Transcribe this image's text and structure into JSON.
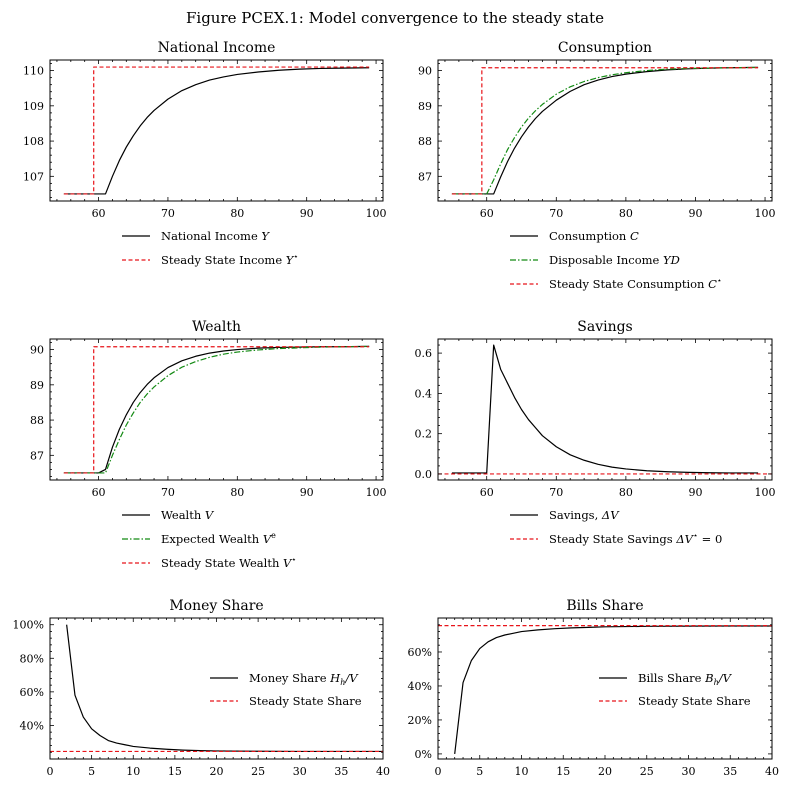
{
  "figure": {
    "title": "Figure PCEX.1: Model convergence to the steady state"
  },
  "colors": {
    "black": "#000000",
    "red": "#e8141a",
    "green": "#138a13"
  },
  "chart_data": [
    {
      "id": "income",
      "type": "line",
      "title": "National Income",
      "xlim": [
        53,
        101
      ],
      "ylim": [
        106.3,
        110.3
      ],
      "xticks": [
        60,
        70,
        80,
        90,
        100
      ],
      "xtick_labels": [
        "60",
        "70",
        "80",
        "90",
        "100"
      ],
      "yticks": [
        107,
        108,
        109,
        110
      ],
      "ytick_labels": [
        "107",
        "108",
        "109",
        "110"
      ],
      "legend": "below",
      "series": [
        {
          "name": "National Income Y",
          "label_main": "National Income",
          "label_sym": "Y",
          "label_sup": "",
          "color": "#000000",
          "style": "solid",
          "x": [
            55,
            57,
            59,
            61,
            62,
            63,
            64,
            65,
            66,
            67,
            68,
            70,
            72,
            74,
            76,
            78,
            80,
            83,
            86,
            89,
            92,
            95,
            99
          ],
          "y": [
            106.5,
            106.5,
            106.5,
            106.5,
            107.0,
            107.45,
            107.83,
            108.15,
            108.43,
            108.67,
            108.87,
            109.19,
            109.43,
            109.6,
            109.73,
            109.82,
            109.89,
            109.96,
            110.01,
            110.04,
            110.06,
            110.07,
            110.08
          ]
        },
        {
          "name": "Steady State Income Y*",
          "label_main": "Steady State Income",
          "label_sym": "Y",
          "label_sup": "⋆",
          "color": "#e8141a",
          "style": "dashed",
          "x": [
            55,
            59.3,
            59.3,
            99
          ],
          "y": [
            106.5,
            106.5,
            110.1,
            110.1
          ]
        }
      ]
    },
    {
      "id": "consumption",
      "type": "line",
      "title": "Consumption",
      "xlim": [
        53,
        101
      ],
      "ylim": [
        86.3,
        90.3
      ],
      "xticks": [
        60,
        70,
        80,
        90,
        100
      ],
      "xtick_labels": [
        "60",
        "70",
        "80",
        "90",
        "100"
      ],
      "yticks": [
        87,
        88,
        89,
        90
      ],
      "ytick_labels": [
        "87",
        "88",
        "89",
        "90"
      ],
      "legend": "below",
      "series": [
        {
          "name": "Consumption C",
          "label_main": "Consumption",
          "label_sym": "C",
          "label_sup": "",
          "color": "#000000",
          "style": "solid",
          "x": [
            55,
            57,
            59,
            61,
            62,
            63,
            64,
            65,
            66,
            67,
            68,
            70,
            72,
            74,
            76,
            78,
            80,
            83,
            86,
            89,
            92,
            95,
            99
          ],
          "y": [
            86.5,
            86.5,
            86.5,
            86.5,
            86.98,
            87.42,
            87.8,
            88.12,
            88.4,
            88.64,
            88.84,
            89.16,
            89.41,
            89.6,
            89.73,
            89.83,
            89.9,
            89.97,
            90.02,
            90.05,
            90.07,
            90.08,
            90.09
          ]
        },
        {
          "name": "Disposable Income YD",
          "label_main": "Disposable Income",
          "label_sym": "YD",
          "label_sup": "",
          "color": "#138a13",
          "style": "dashdot",
          "x": [
            55,
            57,
            59,
            60,
            61,
            62,
            63,
            64,
            65,
            66,
            67,
            68,
            70,
            72,
            74,
            76,
            78,
            80,
            83,
            86,
            89,
            92,
            95,
            99
          ],
          "y": [
            86.5,
            86.5,
            86.5,
            86.5,
            86.9,
            87.35,
            87.76,
            88.1,
            88.4,
            88.65,
            88.86,
            89.04,
            89.33,
            89.54,
            89.69,
            89.8,
            89.88,
            89.94,
            90.0,
            90.04,
            90.06,
            90.07,
            90.08,
            90.09
          ]
        },
        {
          "name": "Steady State Consumption C*",
          "label_main": "Steady State Consumption",
          "label_sym": "C",
          "label_sup": "⋆",
          "color": "#e8141a",
          "style": "dashed",
          "x": [
            55,
            59.3,
            59.3,
            99
          ],
          "y": [
            86.5,
            86.5,
            90.08,
            90.08
          ]
        }
      ]
    },
    {
      "id": "wealth",
      "type": "line",
      "title": "Wealth",
      "xlim": [
        53,
        101
      ],
      "ylim": [
        86.3,
        90.3
      ],
      "xticks": [
        60,
        70,
        80,
        90,
        100
      ],
      "xtick_labels": [
        "60",
        "70",
        "80",
        "90",
        "100"
      ],
      "yticks": [
        87,
        88,
        89,
        90
      ],
      "ytick_labels": [
        "87",
        "88",
        "89",
        "90"
      ],
      "legend": "below",
      "series": [
        {
          "name": "Wealth V",
          "label_main": "Wealth",
          "label_sym": "V",
          "label_sup": "",
          "color": "#000000",
          "style": "solid",
          "x": [
            55,
            57,
            59,
            60,
            61,
            62,
            63,
            64,
            65,
            66,
            67,
            68,
            70,
            72,
            74,
            76,
            78,
            80,
            83,
            86,
            89,
            92,
            95,
            99
          ],
          "y": [
            86.5,
            86.5,
            86.5,
            86.5,
            86.6,
            87.23,
            87.74,
            88.15,
            88.5,
            88.78,
            89.01,
            89.2,
            89.49,
            89.68,
            89.81,
            89.9,
            89.96,
            90.0,
            90.04,
            90.06,
            90.07,
            90.08,
            90.08,
            90.09
          ]
        },
        {
          "name": "Expected Wealth Ve",
          "label_main": "Expected Wealth",
          "label_sym": "V",
          "label_sup": "e",
          "color": "#138a13",
          "style": "dashdot",
          "x": [
            55,
            57,
            59,
            60,
            61,
            62,
            63,
            64,
            65,
            66,
            67,
            68,
            70,
            72,
            74,
            76,
            78,
            80,
            83,
            86,
            89,
            92,
            95,
            99
          ],
          "y": [
            86.5,
            86.5,
            86.5,
            86.5,
            86.5,
            87.0,
            87.45,
            87.86,
            88.2,
            88.5,
            88.74,
            88.94,
            89.26,
            89.5,
            89.66,
            89.78,
            89.87,
            89.93,
            89.99,
            90.03,
            90.05,
            90.07,
            90.08,
            90.09
          ]
        },
        {
          "name": "Steady State Wealth V*",
          "label_main": "Steady State Wealth",
          "label_sym": "V",
          "label_sup": "⋆",
          "color": "#e8141a",
          "style": "dashed",
          "x": [
            55,
            59.3,
            59.3,
            99
          ],
          "y": [
            86.5,
            86.5,
            90.08,
            90.08
          ]
        }
      ]
    },
    {
      "id": "savings",
      "type": "line",
      "title": "Savings",
      "xlim": [
        53,
        101
      ],
      "ylim": [
        -0.03,
        0.67
      ],
      "xticks": [
        60,
        70,
        80,
        90,
        100
      ],
      "xtick_labels": [
        "60",
        "70",
        "80",
        "90",
        "100"
      ],
      "yticks": [
        0.0,
        0.2,
        0.4,
        0.6
      ],
      "ytick_labels": [
        "0.0",
        "0.2",
        "0.4",
        "0.6"
      ],
      "legend": "below",
      "series": [
        {
          "name": "Savings, ΔV",
          "label_main": "Savings,",
          "label_sym": "ΔV",
          "label_sup": "",
          "color": "#000000",
          "style": "solid",
          "x": [
            55,
            57,
            59,
            60,
            61,
            62,
            63,
            64,
            65,
            66,
            67,
            68,
            70,
            72,
            74,
            76,
            78,
            80,
            83,
            86,
            89,
            92,
            95,
            99
          ],
          "y": [
            0.005,
            0.005,
            0.005,
            0.005,
            0.64,
            0.52,
            0.45,
            0.38,
            0.32,
            0.27,
            0.23,
            0.19,
            0.135,
            0.095,
            0.068,
            0.048,
            0.034,
            0.025,
            0.016,
            0.011,
            0.008,
            0.006,
            0.005,
            0.005
          ]
        },
        {
          "name": "Steady State Savings ΔV* = 0",
          "label_main": "Steady State Savings",
          "label_sym": "ΔV",
          "label_sup": "⋆",
          "label_tail": "= 0",
          "color": "#e8141a",
          "style": "dashed",
          "x": [
            53,
            101
          ],
          "y": [
            0,
            0
          ]
        }
      ]
    },
    {
      "id": "money_share",
      "type": "line",
      "title": "Money Share",
      "xlim": [
        0,
        40
      ],
      "ylim": [
        0.2,
        1.04
      ],
      "xticks": [
        0,
        5,
        10,
        15,
        20,
        25,
        30,
        35,
        40
      ],
      "xtick_labels": [
        "0",
        "5",
        "10",
        "15",
        "20",
        "25",
        "30",
        "35",
        "40"
      ],
      "yticks": [
        0.4,
        0.6,
        0.8,
        1.0
      ],
      "ytick_labels": [
        "40%",
        "60%",
        "80%",
        "100%"
      ],
      "legend": "right",
      "series": [
        {
          "name": "Money Share Hh/V",
          "label_main": "Money Share",
          "label_sym": "H",
          "label_sub": "h",
          "label_tail": "/V",
          "label_sup": "",
          "color": "#000000",
          "style": "solid",
          "x": [
            2,
            3,
            4,
            5,
            6,
            7,
            8,
            9,
            10,
            12,
            14,
            16,
            18,
            20,
            25,
            30,
            35,
            40
          ],
          "y": [
            1.0,
            0.58,
            0.45,
            0.38,
            0.34,
            0.31,
            0.295,
            0.285,
            0.275,
            0.265,
            0.258,
            0.253,
            0.25,
            0.248,
            0.246,
            0.245,
            0.245,
            0.245
          ]
        },
        {
          "name": "Steady State Share",
          "label_main": "Steady State Share",
          "label_sym": "",
          "label_sup": "",
          "color": "#e8141a",
          "style": "dashed",
          "x": [
            0,
            40
          ],
          "y": [
            0.245,
            0.245
          ]
        }
      ]
    },
    {
      "id": "bills_share",
      "type": "line",
      "title": "Bills Share",
      "xlim": [
        0,
        40
      ],
      "ylim": [
        -0.03,
        0.8
      ],
      "xticks": [
        0,
        5,
        10,
        15,
        20,
        25,
        30,
        35,
        40
      ],
      "xtick_labels": [
        "0",
        "5",
        "10",
        "15",
        "20",
        "25",
        "30",
        "35",
        "40"
      ],
      "yticks": [
        0.0,
        0.2,
        0.4,
        0.6
      ],
      "ytick_labels": [
        "0%",
        "20%",
        "40%",
        "60%"
      ],
      "legend": "right",
      "series": [
        {
          "name": "Bills Share Bh/V",
          "label_main": "Bills Share",
          "label_sym": "B",
          "label_sub": "h",
          "label_tail": "/V",
          "label_sup": "",
          "color": "#000000",
          "style": "solid",
          "x": [
            2,
            3,
            4,
            5,
            6,
            7,
            8,
            9,
            10,
            12,
            14,
            16,
            18,
            20,
            25,
            30,
            35,
            40
          ],
          "y": [
            0.0,
            0.42,
            0.55,
            0.62,
            0.66,
            0.685,
            0.7,
            0.71,
            0.72,
            0.73,
            0.737,
            0.742,
            0.745,
            0.748,
            0.751,
            0.752,
            0.753,
            0.753
          ]
        },
        {
          "name": "Steady State Share",
          "label_main": "Steady State Share",
          "label_sym": "",
          "label_sup": "",
          "color": "#e8141a",
          "style": "dashed",
          "x": [
            0,
            40
          ],
          "y": [
            0.755,
            0.755
          ]
        }
      ]
    }
  ]
}
